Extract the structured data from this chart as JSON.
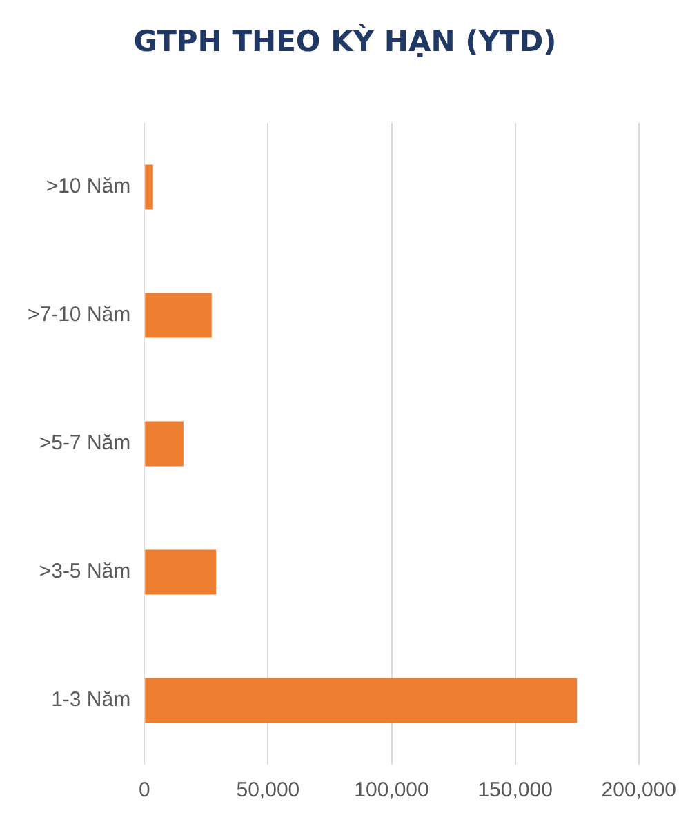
{
  "chart_data": {
    "type": "bar",
    "orientation": "horizontal",
    "title": "GTPH THEO KỲ HẠN (YTD)",
    "categories": [
      ">10 Năm",
      ">7-10 Năm",
      ">5-7 Năm",
      ">3-5 Năm",
      "1-3 Năm"
    ],
    "values": [
      3500,
      27200,
      15800,
      29000,
      175000
    ],
    "color": "#ed7d31",
    "xlim": [
      0,
      200000
    ],
    "xticks": [
      {
        "value": 0,
        "label": "0"
      },
      {
        "value": 50000,
        "label": "50,000"
      },
      {
        "value": 100000,
        "label": "100,000"
      },
      {
        "value": 150000,
        "label": "150,000"
      },
      {
        "value": 200000,
        "label": "200,000"
      }
    ],
    "grid": "x",
    "legend": false
  }
}
